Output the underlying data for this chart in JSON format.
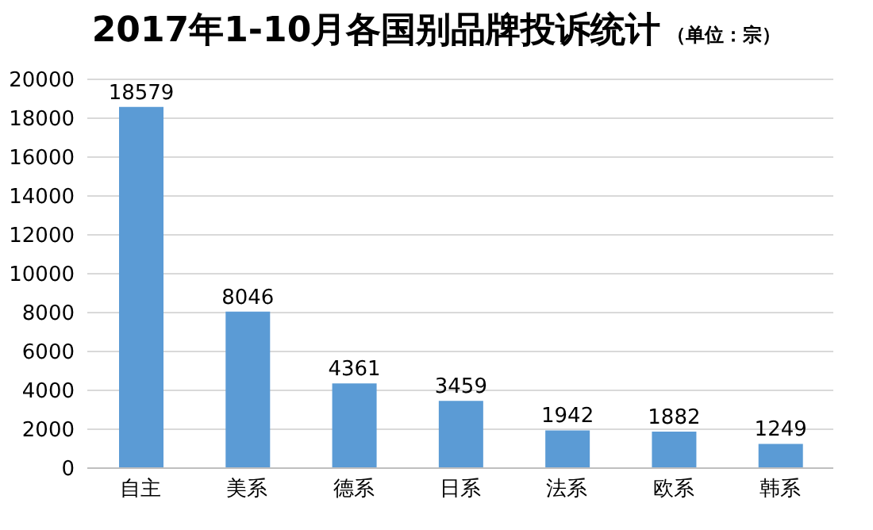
{
  "chart_data": {
    "type": "bar",
    "title": "2017年1-10月各国别品牌投诉统计",
    "subtitle": "（单位：宗）",
    "categories": [
      "自主",
      "美系",
      "德系",
      "日系",
      "法系",
      "欧系",
      "韩系"
    ],
    "values": [
      18579,
      8046,
      4361,
      3459,
      1942,
      1882,
      1249
    ],
    "color": "#5b9bd5",
    "ylim": [
      0,
      20000
    ],
    "yticks": [
      0,
      2000,
      4000,
      6000,
      8000,
      10000,
      12000,
      14000,
      16000,
      18000,
      20000
    ],
    "grid": "y",
    "data_labels": true
  }
}
